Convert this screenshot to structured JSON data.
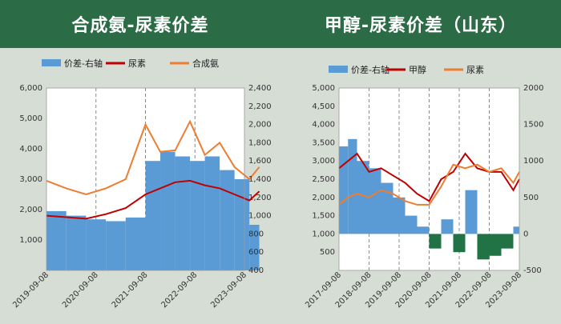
{
  "left": {
    "header": "合成氨-尿素价差",
    "chart_data": {
      "type": "bar+line",
      "title": "",
      "legend": [
        "价差-右轴",
        "尿素",
        "合成氨"
      ],
      "legend_placement": "top",
      "x_ticks": [
        "2019-09-08",
        "2020-09-08",
        "2021-09-08",
        "2022-09-08",
        "2023-09-08"
      ],
      "y_left_ticks": [
        "6,000",
        "5,000",
        "4,000",
        "3,000",
        "2,000",
        "1,000",
        ""
      ],
      "y_left_range": [
        0,
        6000
      ],
      "y_right_ticks": [
        "2,400",
        "2,200",
        "2,000",
        "1,800",
        "1,600",
        "1,400",
        "1,200",
        "1,000",
        "800",
        "600",
        "400"
      ],
      "y_right_range": [
        400,
        2400
      ],
      "series": [
        {
          "name": "价差-右轴",
          "axis": "right",
          "color": "#5b9bd5",
          "x": [
            0,
            0.4,
            0.8,
            1.2,
            1.6,
            2.0,
            2.3,
            2.6,
            2.9,
            3.2,
            3.5,
            3.8,
            4.1,
            4.3
          ],
          "values": [
            1050,
            1000,
            960,
            940,
            980,
            1600,
            1700,
            1650,
            1600,
            1650,
            1500,
            1400,
            900,
            600
          ]
        },
        {
          "name": "尿素",
          "axis": "left",
          "color": "#c00000",
          "x": [
            0,
            0.4,
            0.8,
            1.2,
            1.6,
            2.0,
            2.3,
            2.6,
            2.9,
            3.2,
            3.5,
            3.8,
            4.1,
            4.3
          ],
          "values": [
            1800,
            1750,
            1700,
            1850,
            2050,
            2500,
            2700,
            2900,
            2950,
            2800,
            2700,
            2500,
            2300,
            2600
          ]
        },
        {
          "name": "合成氨",
          "axis": "left",
          "color": "#ed7d31",
          "x": [
            0,
            0.4,
            0.8,
            1.2,
            1.6,
            2.0,
            2.3,
            2.6,
            2.9,
            3.2,
            3.5,
            3.8,
            4.1,
            4.3
          ],
          "values": [
            2950,
            2700,
            2500,
            2700,
            3000,
            4800,
            3900,
            3950,
            4900,
            3800,
            4200,
            3400,
            3000,
            3400
          ]
        }
      ],
      "dashed_verticals": [
        "2020-09-08",
        "2021-09-08",
        "2022-09-08"
      ]
    }
  },
  "right": {
    "header": "甲醇-尿素价差（山东）",
    "chart_data": {
      "type": "bar+line",
      "title": "",
      "legend": [
        "价差-右轴",
        "甲醇",
        "尿素"
      ],
      "legend_placement": "top",
      "x_ticks": [
        "2017-09-08",
        "2018-09-08",
        "2019-09-08",
        "2020-09-08",
        "2021-09-08",
        "2022-09-08",
        "2023-09-08"
      ],
      "y_left_ticks": [
        "5,000",
        "4,500",
        "4,000",
        "3,500",
        "3,000",
        "2,500",
        "2,000",
        "1,500",
        "1,000",
        "500",
        ""
      ],
      "y_left_range": [
        0,
        5000
      ],
      "y_right_ticks": [
        "2000",
        "1500",
        "1000",
        "500",
        "0",
        "-500"
      ],
      "y_right_range": [
        -500,
        2000
      ],
      "series": [
        {
          "name": "价差-右轴",
          "axis": "right",
          "positive_color": "#5b9bd5",
          "negative_color": "#217346",
          "x": [
            0,
            0.3,
            0.6,
            1.0,
            1.4,
            1.8,
            2.2,
            2.6,
            3.0,
            3.4,
            3.8,
            4.2,
            4.6,
            5.0,
            5.4,
            5.8,
            6.0
          ],
          "values": [
            1200,
            1300,
            1000,
            900,
            700,
            500,
            250,
            100,
            -200,
            200,
            -250,
            600,
            -350,
            -300,
            -200,
            100,
            -250
          ]
        },
        {
          "name": "甲醇",
          "axis": "left",
          "color": "#c00000",
          "x": [
            0,
            0.3,
            0.6,
            1.0,
            1.4,
            1.8,
            2.2,
            2.6,
            3.0,
            3.4,
            3.8,
            4.2,
            4.6,
            5.0,
            5.4,
            5.8,
            6.0
          ],
          "values": [
            2800,
            3000,
            3200,
            2700,
            2800,
            2600,
            2400,
            2100,
            1900,
            2500,
            2700,
            3200,
            2800,
            2700,
            2700,
            2200,
            2500
          ]
        },
        {
          "name": "尿素",
          "axis": "left",
          "color": "#ed7d31",
          "x": [
            0,
            0.3,
            0.6,
            1.0,
            1.4,
            1.8,
            2.2,
            2.6,
            3.0,
            3.4,
            3.8,
            4.2,
            4.6,
            5.0,
            5.4,
            5.8,
            6.0
          ],
          "values": [
            1800,
            2000,
            2100,
            2000,
            2200,
            2100,
            1900,
            1800,
            1800,
            2300,
            2900,
            2800,
            2900,
            2700,
            2800,
            2400,
            2700
          ]
        }
      ],
      "dashed_verticals": [
        "2018-09-08",
        "2019-09-08",
        "2020-09-08",
        "2021-09-08",
        "2022-09-08"
      ]
    }
  }
}
